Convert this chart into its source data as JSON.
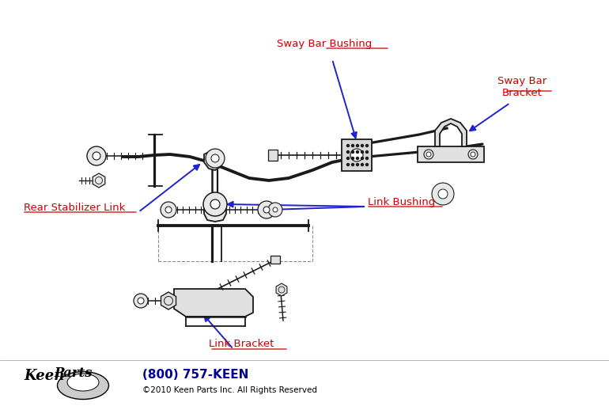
{
  "bg_color": "#ffffff",
  "label_color_red": "#cc0000",
  "arrow_color": "#2222cc",
  "line_color": "#1a1a1a",
  "lw_bar": 2.8,
  "lw_part": 1.3,
  "lw_thin": 0.9,
  "labels": {
    "sway_bar_bushing": "Sway Bar Bushing",
    "sway_bar_bracket": "Sway Bar\nBracket",
    "link_bushing": "Link Bushing",
    "rear_stabilizer_link": "Rear Stabilizer Link",
    "link_bracket": "Link Bracket"
  },
  "footer_phone": "(800) 757-KEEN",
  "footer_copy": "©2010 Keen Parts Inc. All Rights Reserved",
  "figsize": [
    7.7,
    5.18
  ],
  "dpi": 100
}
